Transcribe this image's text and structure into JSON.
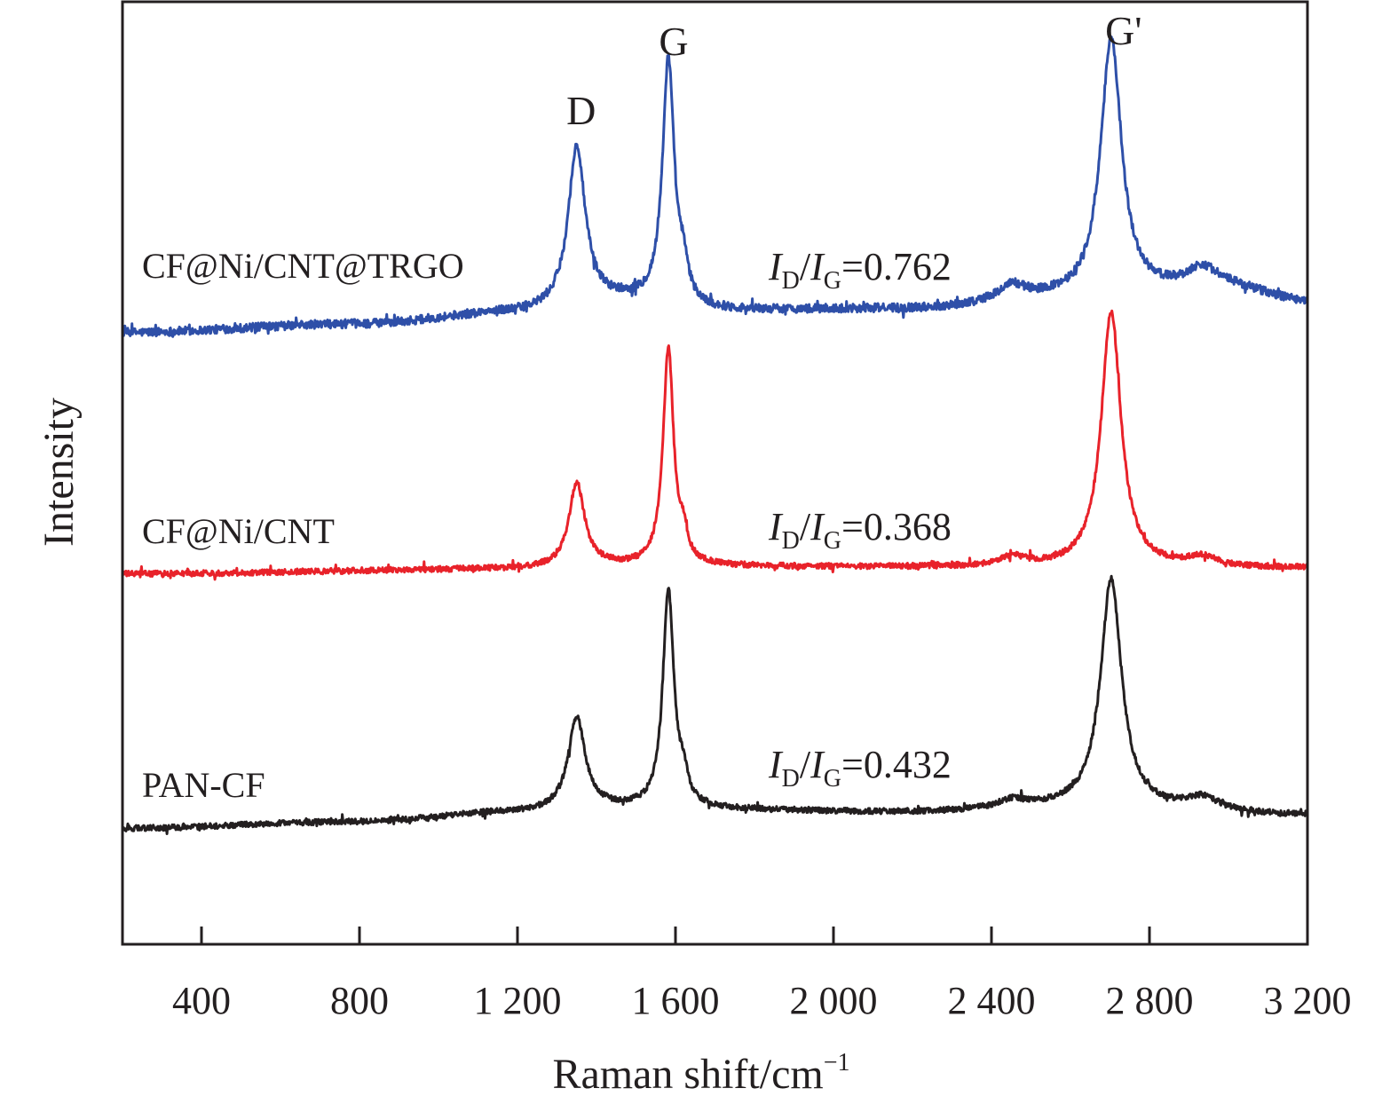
{
  "chart_data": {
    "type": "line",
    "title": "",
    "xlabel": "Raman shift/cm",
    "xlabel_superscript": "−1",
    "ylabel": "Intensity",
    "xlim": [
      200,
      3200
    ],
    "ylim": [
      0,
      100
    ],
    "y_units": "arbitrary (offset/stacked spectra, no y ticks)",
    "grid": false,
    "x_ticks": [
      400,
      800,
      1200,
      1600,
      2000,
      2400,
      2800,
      3200
    ],
    "x_tick_labels": [
      "400",
      "800",
      "1 200",
      "1 600",
      "2 000",
      "2 400",
      "2 800",
      "3 200"
    ],
    "peak_labels": [
      {
        "text": "D",
        "x": 1350
      },
      {
        "text": "G",
        "x": 1582
      },
      {
        "text": "G'",
        "x": 2703
      }
    ],
    "series": [
      {
        "name": "CF@Ni/CNT@TRGO",
        "color": "#2e4fa8",
        "ratio_prefix_I": "I",
        "ratio_sub_D": "D",
        "ratio_slash": "/",
        "ratio_sub_G": "G",
        "ratio_value": "=0.762",
        "baseline": [
          [
            200,
            64.9
          ],
          [
            800,
            65.8
          ],
          [
            1200,
            67.0
          ],
          [
            1450,
            68.2
          ],
          [
            1700,
            67.2
          ],
          [
            2200,
            67.4
          ],
          [
            2600,
            68.5
          ],
          [
            3000,
            69.5
          ],
          [
            3200,
            68.2
          ]
        ],
        "peaks": [
          {
            "center": 1350,
            "height": 16.8,
            "hwhm": 26
          },
          {
            "center": 1582,
            "height": 26.0,
            "hwhm": 18
          },
          {
            "center": 1620,
            "height": 3.0,
            "hwhm": 14
          },
          {
            "center": 2452,
            "height": 1.6,
            "hwhm": 40
          },
          {
            "center": 2703,
            "height": 27.4,
            "hwhm": 32
          },
          {
            "center": 2935,
            "height": 2.2,
            "hwhm": 50
          }
        ],
        "noise": 0.45
      },
      {
        "name": "CF@Ni/CNT",
        "color": "#e8222a",
        "ratio_prefix_I": "I",
        "ratio_sub_D": "D",
        "ratio_slash": "/",
        "ratio_sub_G": "G",
        "ratio_value": "=0.368",
        "baseline": [
          [
            200,
            39.3
          ],
          [
            1200,
            39.8
          ],
          [
            1450,
            40.1
          ],
          [
            2200,
            40.0
          ],
          [
            3200,
            39.9
          ]
        ],
        "peaks": [
          {
            "center": 1350,
            "height": 8.9,
            "hwhm": 24
          },
          {
            "center": 1582,
            "height": 23.0,
            "hwhm": 16
          },
          {
            "center": 1620,
            "height": 2.5,
            "hwhm": 12
          },
          {
            "center": 2452,
            "height": 1.0,
            "hwhm": 40
          },
          {
            "center": 2703,
            "height": 27.2,
            "hwhm": 30
          },
          {
            "center": 2935,
            "height": 1.0,
            "hwhm": 45
          }
        ],
        "noise": 0.3
      },
      {
        "name": "PAN-CF",
        "color": "#231f20",
        "ratio_prefix_I": "I",
        "ratio_sub_D": "D",
        "ratio_slash": "/",
        "ratio_sub_G": "G",
        "ratio_value": "=0.432",
        "baseline": [
          [
            200,
            12.3
          ],
          [
            800,
            13.0
          ],
          [
            1200,
            14.0
          ],
          [
            1450,
            14.4
          ],
          [
            2200,
            14.0
          ],
          [
            2600,
            14.5
          ],
          [
            3200,
            13.7
          ]
        ],
        "peaks": [
          {
            "center": 1350,
            "height": 9.8,
            "hwhm": 26
          },
          {
            "center": 1582,
            "height": 23.0,
            "hwhm": 17
          },
          {
            "center": 1620,
            "height": 2.4,
            "hwhm": 13
          },
          {
            "center": 2452,
            "height": 0.8,
            "hwhm": 40
          },
          {
            "center": 2703,
            "height": 24.3,
            "hwhm": 32
          },
          {
            "center": 2935,
            "height": 1.4,
            "hwhm": 50
          }
        ],
        "noise": 0.3
      }
    ]
  }
}
